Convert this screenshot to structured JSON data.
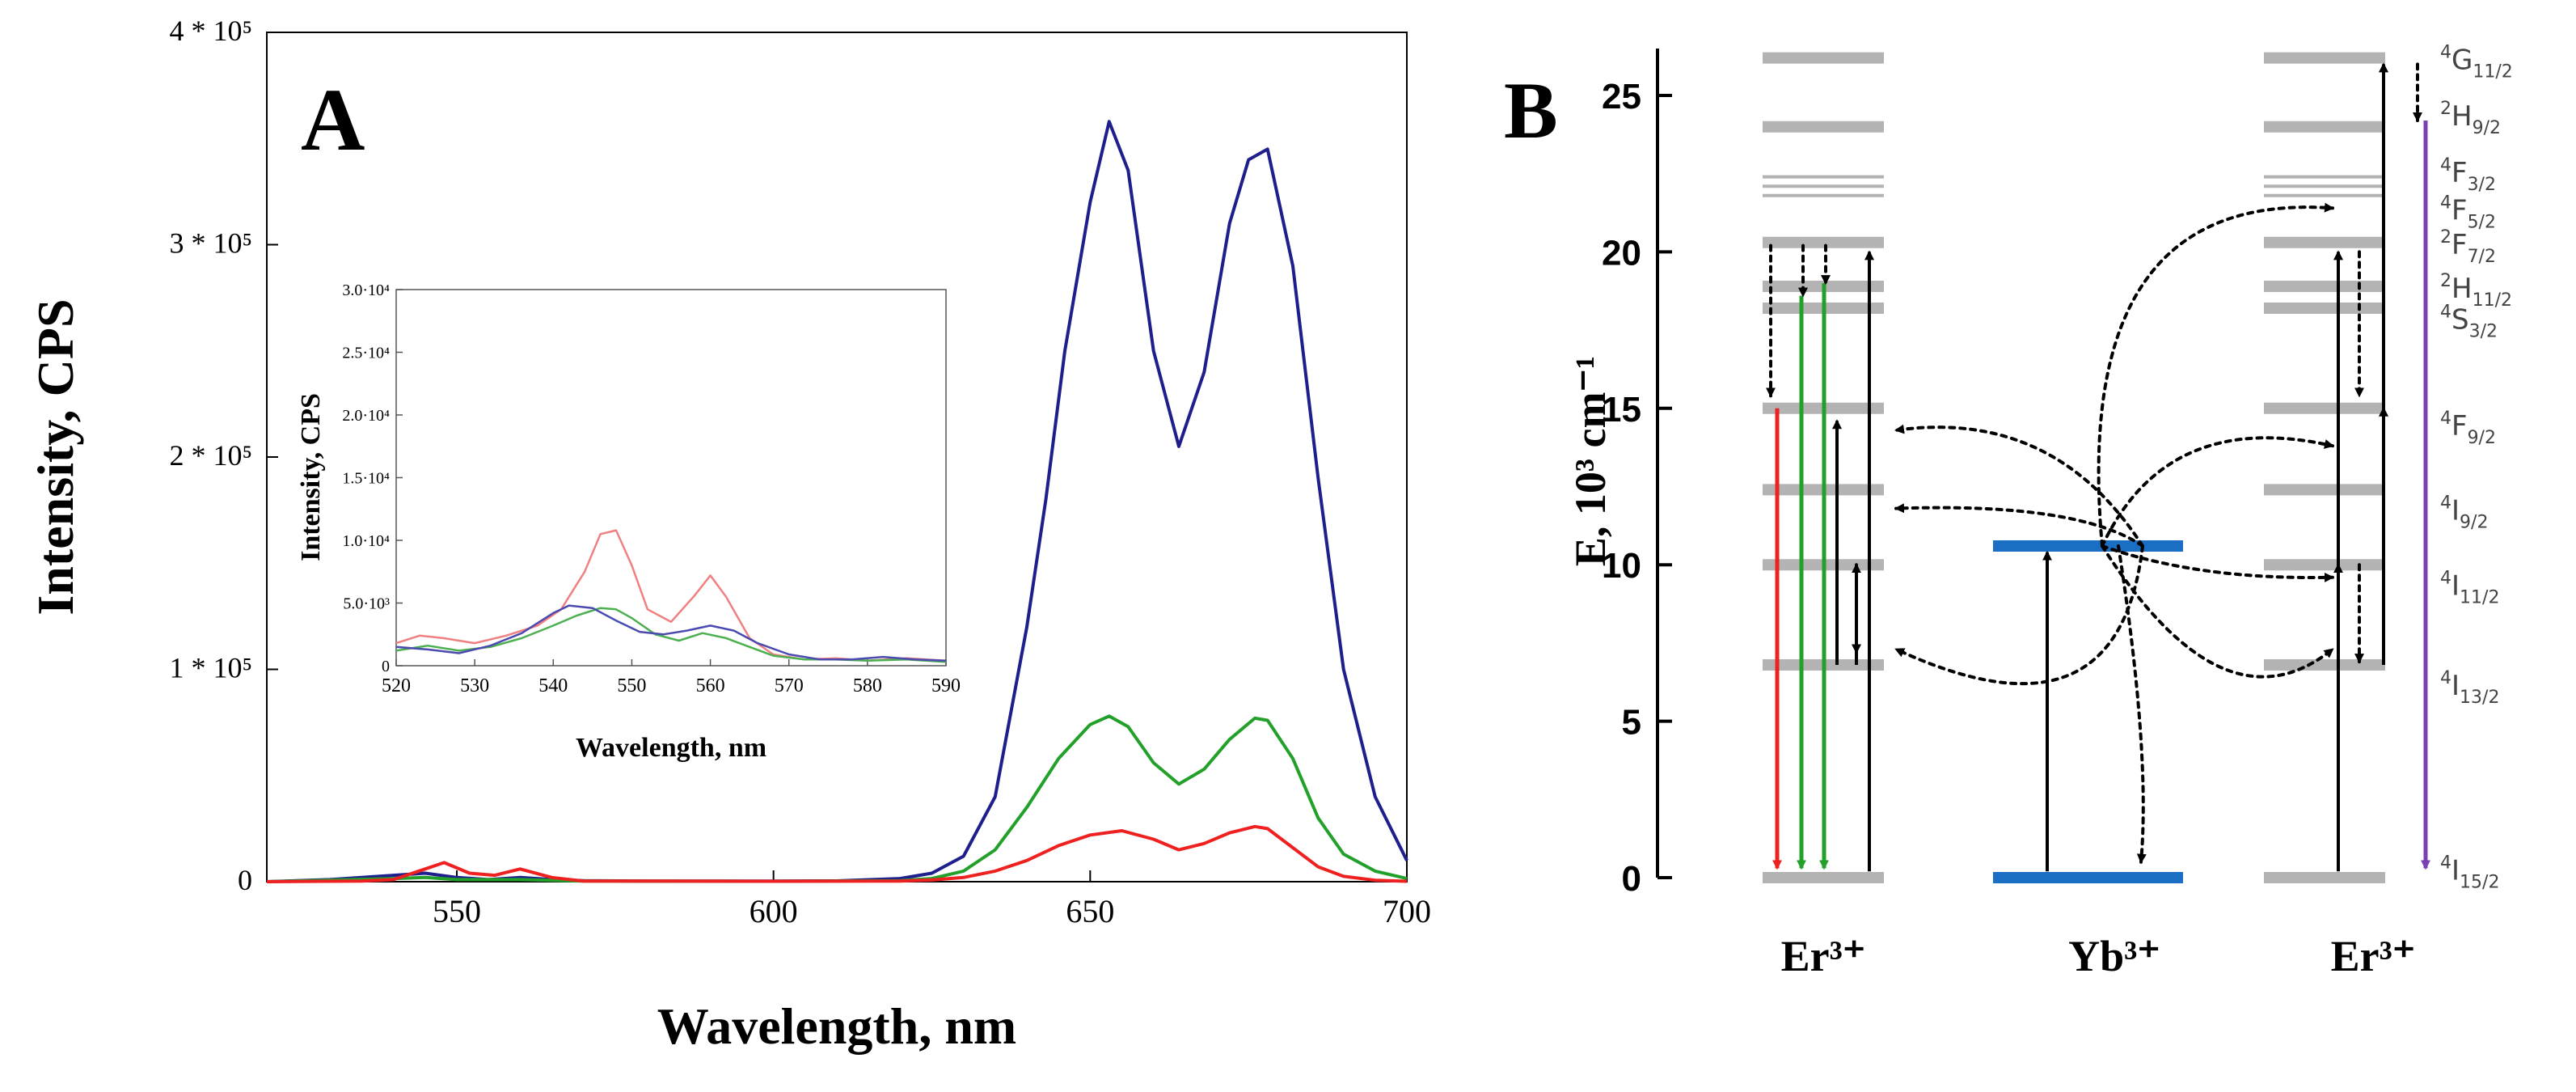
{
  "colors": {
    "red": "#ee2020",
    "green": "#22a02a",
    "blue": "#1e1e8c",
    "inset_red": "#f08080",
    "inset_green": "#4caf50",
    "inset_blue": "#4a4ab0",
    "level_gray": "#b3b3b3",
    "yb_blue": "#1a6fc4",
    "purple": "#7b3fb5"
  },
  "chart_data": [
    {
      "type": "line",
      "panel_label": "A",
      "xlabel": "Wavelength, nm",
      "ylabel": "Intensity, CPS",
      "xlim": [
        520,
        700
      ],
      "ylim": [
        0,
        400000
      ],
      "xticks": [
        {
          "value": 550,
          "label": "550"
        },
        {
          "value": 600,
          "label": "600"
        },
        {
          "value": 650,
          "label": "650"
        },
        {
          "value": 700,
          "label": "700"
        }
      ],
      "yticks": [
        {
          "value": 0,
          "label": "0"
        },
        {
          "value": 100000,
          "label": "1 * 10⁵"
        },
        {
          "value": 200000,
          "label": "2 * 10⁵"
        },
        {
          "value": 300000,
          "label": "3 * 10⁵"
        },
        {
          "value": 400000,
          "label": "4 * 10⁵"
        }
      ],
      "series": [
        {
          "name": "blue",
          "color_key": "blue",
          "x": [
            520,
            530,
            540,
            545,
            550,
            555,
            560,
            565,
            570,
            580,
            590,
            600,
            610,
            620,
            625,
            630,
            635,
            640,
            643,
            646,
            650,
            653,
            656,
            660,
            664,
            668,
            672,
            675,
            678,
            682,
            686,
            690,
            695,
            700
          ],
          "y": [
            0,
            1000,
            3000,
            4000,
            2000,
            1000,
            2000,
            1000,
            500,
            300,
            300,
            300,
            400,
            1500,
            4000,
            12000,
            40000,
            120000,
            180000,
            250000,
            320000,
            358000,
            335000,
            250000,
            205000,
            240000,
            310000,
            340000,
            345000,
            290000,
            190000,
            100000,
            40000,
            10000
          ]
        },
        {
          "name": "green",
          "color_key": "green",
          "x": [
            520,
            540,
            545,
            550,
            560,
            570,
            600,
            620,
            625,
            630,
            635,
            640,
            645,
            650,
            653,
            656,
            660,
            664,
            668,
            672,
            676,
            678,
            682,
            686,
            690,
            695,
            700
          ],
          "y": [
            0,
            1500,
            2000,
            1000,
            1000,
            300,
            200,
            500,
            1500,
            5000,
            15000,
            35000,
            58000,
            74000,
            78000,
            73000,
            56000,
            46000,
            53000,
            67000,
            77000,
            76000,
            58000,
            30000,
            13000,
            5000,
            1500
          ]
        },
        {
          "name": "red",
          "color_key": "red",
          "x": [
            520,
            535,
            540,
            545,
            548,
            552,
            556,
            560,
            565,
            570,
            600,
            620,
            625,
            630,
            635,
            640,
            645,
            650,
            655,
            660,
            664,
            668,
            672,
            676,
            678,
            682,
            686,
            690,
            695,
            700
          ],
          "y": [
            0,
            300,
            1000,
            6000,
            9000,
            4000,
            3000,
            6000,
            2000,
            300,
            200,
            300,
            800,
            2000,
            5000,
            10000,
            17000,
            22000,
            24000,
            20000,
            15000,
            18000,
            23000,
            26000,
            25000,
            16000,
            7000,
            2500,
            700,
            200
          ]
        }
      ],
      "inset": {
        "xlabel": "Wavelength, nm",
        "ylabel": "Intensity, CPS",
        "xlim": [
          520,
          590
        ],
        "ylim": [
          0,
          30000
        ],
        "xticks": [
          {
            "value": 520,
            "label": "520"
          },
          {
            "value": 530,
            "label": "530"
          },
          {
            "value": 540,
            "label": "540"
          },
          {
            "value": 550,
            "label": "550"
          },
          {
            "value": 560,
            "label": "560"
          },
          {
            "value": 570,
            "label": "570"
          },
          {
            "value": 580,
            "label": "580"
          },
          {
            "value": 590,
            "label": "590"
          }
        ],
        "yticks": [
          {
            "value": 0,
            "label": "0"
          },
          {
            "value": 5000,
            "label": "5.0·10³"
          },
          {
            "value": 10000,
            "label": "1.0·10⁴"
          },
          {
            "value": 15000,
            "label": "1.5·10⁴"
          },
          {
            "value": 20000,
            "label": "2.0·10⁴"
          },
          {
            "value": 25000,
            "label": "2.5·10⁴"
          },
          {
            "value": 30000,
            "label": "3.0·10⁴"
          }
        ],
        "series": [
          {
            "name": "red",
            "color_key": "inset_red",
            "x": [
              520,
              523,
              526,
              530,
              534,
              538,
              541,
              544,
              546,
              548,
              550,
              552,
              555,
              558,
              560,
              562,
              565,
              568,
              572,
              576,
              580,
              585,
              590
            ],
            "y": [
              1800,
              2400,
              2200,
              1800,
              2400,
              3200,
              4500,
              7500,
              10500,
              10800,
              8000,
              4500,
              3500,
              5600,
              7200,
              5500,
              2200,
              900,
              500,
              600,
              400,
              600,
              400
            ]
          },
          {
            "name": "green",
            "color_key": "inset_green",
            "x": [
              520,
              524,
              528,
              532,
              536,
              540,
              543,
              546,
              548,
              550,
              553,
              556,
              559,
              562,
              565,
              568,
              572,
              576,
              580,
              585,
              590
            ],
            "y": [
              1200,
              1600,
              1200,
              1500,
              2200,
              3200,
              4000,
              4600,
              4500,
              3800,
              2500,
              2000,
              2600,
              2200,
              1500,
              800,
              500,
              500,
              400,
              500,
              300
            ]
          },
          {
            "name": "blue",
            "color_key": "inset_blue",
            "x": [
              520,
              524,
              528,
              532,
              536,
              540,
              542,
              545,
              548,
              551,
              554,
              557,
              560,
              563,
              566,
              570,
              574,
              578,
              582,
              586,
              590
            ],
            "y": [
              1500,
              1300,
              1000,
              1600,
              2600,
              4200,
              4800,
              4600,
              3600,
              2700,
              2500,
              2800,
              3200,
              2800,
              1800,
              900,
              500,
              500,
              700,
              500,
              400
            ]
          }
        ]
      }
    },
    {
      "type": "diagram",
      "panel_label": "B",
      "ylabel": "E, 10³ cm⁻¹",
      "ylim": [
        0,
        26
      ],
      "yticks": [
        {
          "value": 0,
          "label": "0"
        },
        {
          "value": 5,
          "label": "5"
        },
        {
          "value": 10,
          "label": "10"
        },
        {
          "value": 15,
          "label": "15"
        },
        {
          "value": 20,
          "label": "20"
        },
        {
          "value": 25,
          "label": "25"
        }
      ],
      "columns": [
        {
          "name": "Er",
          "label": "Er³⁺"
        },
        {
          "name": "Yb",
          "label": "Yb³⁺"
        },
        {
          "name": "Er2",
          "label": "Er³⁺"
        }
      ],
      "er_levels": [
        0,
        6.8,
        10.0,
        12.4,
        15.0,
        18.2,
        18.9,
        20.3,
        21.8,
        22.1,
        22.4,
        24.0,
        26.2
      ],
      "yb_levels": [
        0,
        10.6
      ],
      "level_labels": [
        {
          "energy": 26.2,
          "sup": "4",
          "term": "G",
          "sub": "11/2"
        },
        {
          "energy": 24.4,
          "sup": "2",
          "term": "H",
          "sub": "9/2"
        },
        {
          "energy": 22.6,
          "sup": "4",
          "term": "F",
          "sub": "3/2"
        },
        {
          "energy": 21.4,
          "sup": "4",
          "term": "F",
          "sub": "5/2"
        },
        {
          "energy": 20.3,
          "sup": "2",
          "term": "F",
          "sub": "7/2"
        },
        {
          "energy": 18.9,
          "sup": "2",
          "term": "H",
          "sub": "11/2"
        },
        {
          "energy": 17.9,
          "sup": "4",
          "term": "S",
          "sub": "3/2"
        },
        {
          "energy": 14.5,
          "sup": "4",
          "term": "F",
          "sub": "9/2"
        },
        {
          "energy": 11.8,
          "sup": "4",
          "term": "I",
          "sub": "9/2"
        },
        {
          "energy": 9.4,
          "sup": "4",
          "term": "I",
          "sub": "11/2"
        },
        {
          "energy": 6.2,
          "sup": "4",
          "term": "I",
          "sub": "13/2"
        },
        {
          "energy": 0.3,
          "sup": "4",
          "term": "I",
          "sub": "15/2"
        }
      ]
    }
  ]
}
